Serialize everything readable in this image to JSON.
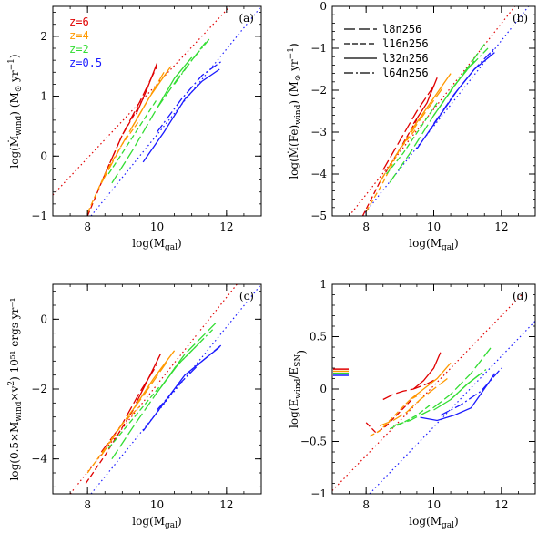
{
  "colors": {
    "z6": "#e00000",
    "z4": "#ff9900",
    "z2": "#33dd33",
    "z05": "#1a1aff",
    "axis": "#000000"
  },
  "legend_z": [
    {
      "label": "z=6",
      "color": "#e00000"
    },
    {
      "label": "z=4",
      "color": "#ff9900"
    },
    {
      "label": "z=2",
      "color": "#33dd33"
    },
    {
      "label": "z=0.5",
      "color": "#1a1aff"
    }
  ],
  "legend_runs": [
    {
      "label": "l8n256",
      "dash": "longdash"
    },
    {
      "label": "l16n256",
      "dash": "shortdash"
    },
    {
      "label": "l32n256",
      "dash": "solid"
    },
    {
      "label": "l64n256",
      "dash": "dashdot"
    }
  ],
  "chart_data": [
    {
      "type": "line",
      "panel": "(a)",
      "xlabel": "log(M",
      "xlabel_sub": "gal",
      "xlabel_end": ")",
      "ylabel": "log(Ṁ",
      "ylabel_sub": "wind",
      "ylabel_end": ")  (M",
      "ylabel_sub2": "⊙",
      "ylabel_end2": " yr",
      "ylabel_sup": "−1",
      "ylabel_close": ")",
      "xlim": [
        7,
        13
      ],
      "ylim": [
        -1,
        2.5
      ],
      "xticks": [
        8,
        10,
        12
      ],
      "xticklabels": [
        "8",
        "10",
        "12"
      ],
      "yticks": [
        -1,
        0,
        1,
        2
      ],
      "yticklabels": [
        "−1",
        "0",
        "1",
        "2"
      ],
      "xminor": 0.5,
      "yminor": 0.2,
      "refs": [
        {
          "color": "z6",
          "x": [
            7,
            12.1
          ],
          "y": [
            -0.65,
            2.5
          ]
        },
        {
          "color": "z05",
          "x": [
            8.1,
            13
          ],
          "y": [
            -1,
            2.5
          ]
        }
      ],
      "series": [
        {
          "color": "z6",
          "dash": "longdash",
          "x": [
            8.5,
            9.0,
            9.5,
            10.0
          ],
          "y": [
            -0.3,
            0.35,
            0.9,
            1.5
          ]
        },
        {
          "color": "z6",
          "dash": "shortdash",
          "x": [
            8.0,
            8.5,
            9.0,
            9.5
          ],
          "y": [
            -1.0,
            -0.3,
            0.35,
            0.85
          ]
        },
        {
          "color": "z6",
          "dash": "solid",
          "x": [
            9.4,
            9.7,
            10.0
          ],
          "y": [
            0.7,
            1.1,
            1.55
          ]
        },
        {
          "color": "z4",
          "dash": "longdash",
          "x": [
            8.4,
            9.0,
            9.6,
            10.2
          ],
          "y": [
            -0.45,
            0.2,
            0.8,
            1.4
          ]
        },
        {
          "color": "z4",
          "dash": "shortdash",
          "x": [
            8.0,
            8.5,
            9.0,
            9.5
          ],
          "y": [
            -0.95,
            -0.3,
            0.2,
            0.6
          ]
        },
        {
          "color": "z4",
          "dash": "solid",
          "x": [
            9.3,
            9.8,
            10.4
          ],
          "y": [
            0.5,
            1.0,
            1.5
          ]
        },
        {
          "color": "z2",
          "dash": "longdash",
          "x": [
            8.7,
            9.3,
            10.0,
            10.6,
            11.4
          ],
          "y": [
            -0.45,
            0.1,
            0.8,
            1.3,
            1.9
          ]
        },
        {
          "color": "z2",
          "dash": "shortdash",
          "x": [
            8.6,
            9.0,
            9.5,
            10.0
          ],
          "y": [
            -0.3,
            0.05,
            0.5,
            0.95
          ]
        },
        {
          "color": "z2",
          "dash": "solid",
          "x": [
            10.0,
            10.5,
            11.0
          ],
          "y": [
            0.8,
            1.3,
            1.65
          ]
        },
        {
          "color": "z2",
          "dash": "dashdot",
          "x": [
            10.5,
            11.0,
            11.5
          ],
          "y": [
            1.2,
            1.6,
            1.95
          ]
        },
        {
          "color": "z05",
          "dash": "solid",
          "x": [
            9.6,
            10.2,
            10.8,
            11.3,
            11.8
          ],
          "y": [
            -0.1,
            0.4,
            0.95,
            1.25,
            1.45
          ]
        },
        {
          "color": "z05",
          "dash": "dashdot",
          "x": [
            10.0,
            10.7,
            11.3,
            11.9
          ],
          "y": [
            0.4,
            0.95,
            1.35,
            1.6
          ]
        }
      ]
    },
    {
      "type": "line",
      "panel": "(b)",
      "xlabel": "log(M",
      "xlabel_sub": "gal",
      "xlabel_end": ")",
      "ylabel": "log(Ṁ(Fe)",
      "ylabel_sub": "wind",
      "ylabel_end": ")  (M",
      "ylabel_sub2": "⊙",
      "ylabel_end2": " yr",
      "ylabel_sup": "−1",
      "ylabel_close": ")",
      "xlim": [
        7,
        13
      ],
      "ylim": [
        -5,
        0
      ],
      "xticks": [
        8,
        10,
        12
      ],
      "xticklabels": [
        "8",
        "10",
        "12"
      ],
      "yticks": [
        -5,
        -4,
        -3,
        -2,
        -1,
        0
      ],
      "yticklabels": [
        "−5",
        "−4",
        "−3",
        "−2",
        "−1",
        "0"
      ],
      "xminor": 0.5,
      "yminor": 0.2,
      "refs": [
        {
          "color": "z6",
          "x": [
            7.5,
            12.4
          ],
          "y": [
            -5,
            0
          ]
        },
        {
          "color": "z05",
          "x": [
            7.9,
            12.8
          ],
          "y": [
            -5,
            0
          ]
        }
      ],
      "series": [
        {
          "color": "z6",
          "dash": "longdash",
          "x": [
            8.5,
            9.0,
            9.5,
            10.0
          ],
          "y": [
            -3.9,
            -3.2,
            -2.5,
            -1.9
          ]
        },
        {
          "color": "z6",
          "dash": "shortdash",
          "x": [
            7.9,
            8.4,
            9.0,
            9.5
          ],
          "y": [
            -5.0,
            -4.2,
            -3.4,
            -2.7
          ]
        },
        {
          "color": "z6",
          "dash": "solid",
          "x": [
            9.4,
            9.8,
            10.1
          ],
          "y": [
            -2.8,
            -2.3,
            -1.7
          ]
        },
        {
          "color": "z4",
          "dash": "longdash",
          "x": [
            8.4,
            9.0,
            9.6,
            10.3
          ],
          "y": [
            -4.2,
            -3.4,
            -2.7,
            -1.9
          ]
        },
        {
          "color": "z4",
          "dash": "shortdash",
          "x": [
            8.0,
            8.5,
            9.0,
            9.5
          ],
          "y": [
            -4.9,
            -4.2,
            -3.4,
            -2.9
          ]
        },
        {
          "color": "z4",
          "dash": "solid",
          "x": [
            9.3,
            9.9,
            10.5
          ],
          "y": [
            -3.0,
            -2.3,
            -1.6
          ]
        },
        {
          "color": "z2",
          "dash": "longdash",
          "x": [
            8.7,
            9.3,
            10.0,
            10.7,
            11.5
          ],
          "y": [
            -4.2,
            -3.5,
            -2.6,
            -1.8,
            -0.9
          ]
        },
        {
          "color": "z2",
          "dash": "shortdash",
          "x": [
            8.6,
            9.1,
            9.6,
            10.1
          ],
          "y": [
            -4.0,
            -3.5,
            -2.9,
            -2.3
          ]
        },
        {
          "color": "z2",
          "dash": "solid",
          "x": [
            10.0,
            10.6,
            11.2
          ],
          "y": [
            -2.6,
            -1.9,
            -1.3
          ]
        },
        {
          "color": "z2",
          "dash": "dashdot",
          "x": [
            10.5,
            11.0,
            11.6
          ],
          "y": [
            -2.0,
            -1.5,
            -1.0
          ]
        },
        {
          "color": "z05",
          "dash": "solid",
          "x": [
            9.5,
            10.1,
            10.7,
            11.2,
            11.8
          ],
          "y": [
            -3.4,
            -2.7,
            -2.0,
            -1.5,
            -1.1
          ]
        },
        {
          "color": "z05",
          "dash": "dashdot",
          "x": [
            10.0,
            10.6,
            11.2,
            11.8
          ],
          "y": [
            -2.8,
            -2.1,
            -1.5,
            -1.0
          ]
        }
      ]
    },
    {
      "type": "line",
      "panel": "(c)",
      "xlabel": "log(M",
      "xlabel_sub": "gal",
      "xlabel_end": ")",
      "ylabel": "log(0.5×M",
      "ylabel_sub": "wind",
      "ylabel_end": "×v",
      "ylabel_sub2": "",
      "ylabel_end2": "",
      "ylabel_sup": "2",
      "ylabel_close": ")  10⁵¹ ergs yr⁻¹",
      "xlim": [
        7,
        13
      ],
      "ylim": [
        -5,
        1
      ],
      "xticks": [
        8,
        10,
        12
      ],
      "xticklabels": [
        "8",
        "10",
        "12"
      ],
      "yticks": [
        -4,
        -2,
        0
      ],
      "yticklabels": [
        "−4",
        "−2",
        "0"
      ],
      "xminor": 0.5,
      "yminor": 0.4,
      "refs": [
        {
          "color": "z6",
          "x": [
            7.5,
            12.3
          ],
          "y": [
            -5,
            1
          ]
        },
        {
          "color": "z05",
          "x": [
            8.1,
            13
          ],
          "y": [
            -5,
            1
          ]
        }
      ],
      "series": [
        {
          "color": "z6",
          "dash": "longdash",
          "x": [
            8.4,
            9.0,
            9.5,
            10.0
          ],
          "y": [
            -3.8,
            -3.0,
            -2.1,
            -1.3
          ]
        },
        {
          "color": "z6",
          "dash": "shortdash",
          "x": [
            7.95,
            8.5,
            9.0,
            9.5
          ],
          "y": [
            -4.7,
            -3.9,
            -3.1,
            -2.3
          ]
        },
        {
          "color": "z6",
          "dash": "solid",
          "x": [
            9.4,
            9.8,
            10.1
          ],
          "y": [
            -2.4,
            -1.6,
            -1.0
          ]
        },
        {
          "color": "z4",
          "dash": "longdash",
          "x": [
            8.4,
            9.0,
            9.6,
            10.3
          ],
          "y": [
            -3.9,
            -3.0,
            -2.2,
            -1.2
          ]
        },
        {
          "color": "z4",
          "dash": "shortdash",
          "x": [
            8.0,
            8.5,
            9.0,
            9.5
          ],
          "y": [
            -4.4,
            -3.7,
            -3.0,
            -2.5
          ]
        },
        {
          "color": "z4",
          "dash": "solid",
          "x": [
            9.3,
            9.9,
            10.5
          ],
          "y": [
            -2.6,
            -1.7,
            -0.9
          ]
        },
        {
          "color": "z2",
          "dash": "longdash",
          "x": [
            8.7,
            9.3,
            10.0,
            10.8,
            11.7
          ],
          "y": [
            -4.0,
            -3.1,
            -2.1,
            -1.0,
            -0.1
          ]
        },
        {
          "color": "z2",
          "dash": "shortdash",
          "x": [
            8.6,
            9.1,
            9.6,
            10.1
          ],
          "y": [
            -3.7,
            -3.1,
            -2.5,
            -1.9
          ]
        },
        {
          "color": "z2",
          "dash": "solid",
          "x": [
            10.0,
            10.6,
            11.2
          ],
          "y": [
            -2.1,
            -1.3,
            -0.7
          ]
        },
        {
          "color": "z2",
          "dash": "dashdot",
          "x": [
            10.5,
            11.0,
            11.6
          ],
          "y": [
            -1.4,
            -0.9,
            -0.3
          ]
        },
        {
          "color": "z05",
          "dash": "solid",
          "x": [
            9.6,
            10.2,
            10.8,
            11.3,
            11.8
          ],
          "y": [
            -3.2,
            -2.4,
            -1.6,
            -1.2,
            -0.8
          ]
        },
        {
          "color": "z05",
          "dash": "dashdot",
          "x": [
            10.0,
            10.7,
            11.3,
            11.9
          ],
          "y": [
            -2.6,
            -1.8,
            -1.2,
            -0.7
          ]
        }
      ]
    },
    {
      "type": "line",
      "panel": "(d)",
      "xlabel": "log(M",
      "xlabel_sub": "gal",
      "xlabel_end": ")",
      "ylabel": "log(E",
      "ylabel_sub": "wind",
      "ylabel_end": "/E",
      "ylabel_sub2": "SN",
      "ylabel_end2": "",
      "ylabel_sup": "",
      "ylabel_close": ")",
      "xlim": [
        7,
        13
      ],
      "ylim": [
        -1,
        1
      ],
      "xticks": [
        8,
        10,
        12
      ],
      "xticklabels": [
        "8",
        "10",
        "12"
      ],
      "yticks": [
        -1,
        -0.5,
        0,
        0.5,
        1
      ],
      "yticklabels": [
        "−1",
        "−0.5",
        "0",
        "0.5",
        "1"
      ],
      "xminor": 0.5,
      "yminor": 0.1,
      "refs": [
        {
          "color": "z6",
          "x": [
            7,
            12.6
          ],
          "y": [
            -0.97,
            0.9
          ]
        },
        {
          "color": "z05",
          "x": [
            8.1,
            13
          ],
          "y": [
            -1,
            0.65
          ]
        }
      ],
      "stubs": [
        {
          "color": "z6",
          "y": 0.19
        },
        {
          "color": "z4",
          "y": 0.17
        },
        {
          "color": "z2",
          "y": 0.15
        },
        {
          "color": "z05",
          "y": 0.13
        }
      ],
      "series": [
        {
          "color": "z6",
          "dash": "longdash",
          "x": [
            8.5,
            8.8,
            9.1,
            9.4,
            9.8,
            10.1
          ],
          "y": [
            -0.1,
            -0.05,
            -0.02,
            0.0,
            0.05,
            0.1
          ]
        },
        {
          "color": "z6",
          "dash": "shortdash",
          "x": [
            8.0,
            8.3,
            8.6,
            8.9,
            9.2,
            9.5
          ],
          "y": [
            -0.32,
            -0.42,
            -0.35,
            -0.25,
            -0.15,
            -0.05
          ]
        },
        {
          "color": "z6",
          "dash": "solid",
          "x": [
            9.4,
            9.7,
            10.0,
            10.2
          ],
          "y": [
            0.0,
            0.08,
            0.2,
            0.35
          ]
        },
        {
          "color": "z4",
          "dash": "longdash",
          "x": [
            8.4,
            8.8,
            9.2,
            9.6,
            10.0,
            10.4
          ],
          "y": [
            -0.35,
            -0.3,
            -0.22,
            -0.1,
            0.0,
            0.1
          ]
        },
        {
          "color": "z4",
          "dash": "shortdash",
          "x": [
            8.1,
            8.4,
            8.7,
            9.0,
            9.3,
            9.6
          ],
          "y": [
            -0.45,
            -0.4,
            -0.3,
            -0.2,
            -0.1,
            -0.05
          ]
        },
        {
          "color": "z4",
          "dash": "solid",
          "x": [
            9.3,
            9.7,
            10.1,
            10.5
          ],
          "y": [
            -0.1,
            0.0,
            0.1,
            0.25
          ]
        },
        {
          "color": "z2",
          "dash": "longdash",
          "x": [
            8.8,
            9.3,
            9.9,
            10.5,
            11.1,
            11.7
          ],
          "y": [
            -0.35,
            -0.3,
            -0.2,
            -0.05,
            0.15,
            0.4
          ]
        },
        {
          "color": "z2",
          "dash": "shortdash",
          "x": [
            8.7,
            9.1,
            9.5,
            9.9
          ],
          "y": [
            -0.38,
            -0.32,
            -0.25,
            -0.15
          ]
        },
        {
          "color": "z2",
          "dash": "solid",
          "x": [
            10.0,
            10.5,
            11.0,
            11.4
          ],
          "y": [
            -0.2,
            -0.1,
            0.05,
            0.15
          ]
        },
        {
          "color": "z2",
          "dash": "dashdot",
          "x": [
            10.5,
            11.0,
            11.6
          ],
          "y": [
            -0.1,
            0.05,
            0.2
          ]
        },
        {
          "color": "z05",
          "dash": "solid",
          "x": [
            9.6,
            10.1,
            10.6,
            11.1,
            11.6,
            11.8
          ],
          "y": [
            -0.27,
            -0.3,
            -0.25,
            -0.18,
            0.05,
            0.15
          ]
        },
        {
          "color": "z05",
          "dash": "dashdot",
          "x": [
            10.2,
            10.8,
            11.4,
            12.0
          ],
          "y": [
            -0.25,
            -0.15,
            -0.02,
            0.2
          ]
        }
      ]
    }
  ]
}
